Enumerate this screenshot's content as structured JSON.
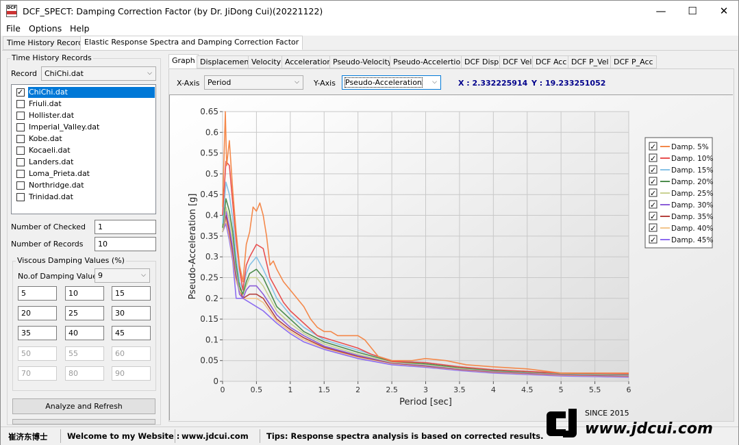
{
  "window": {
    "title": "DCF_SPECT: Damping Correction Factor (by Dr. JiDong Cui)(20221122)",
    "icon_text": "DCF",
    "minimize_icon": "minimize-icon",
    "maximize_icon": "maximize-icon",
    "close_icon": "close-icon"
  },
  "menu": [
    "File",
    "Options",
    "Help"
  ],
  "outer_tabs": [
    "Time History Records",
    "Elastic Response Spectra and Damping Correction Factor"
  ],
  "left": {
    "group_title": "Time History Records",
    "record_label": "Record",
    "record_value": "ChiChi.dat",
    "records": [
      {
        "name": "ChiChi.dat",
        "checked": true,
        "selected": true
      },
      {
        "name": "Friuli.dat",
        "checked": false
      },
      {
        "name": "Hollister.dat",
        "checked": false
      },
      {
        "name": "Imperial_Valley.dat",
        "checked": false
      },
      {
        "name": "Kobe.dat",
        "checked": false
      },
      {
        "name": "Kocaeli.dat",
        "checked": false
      },
      {
        "name": "Landers.dat",
        "checked": false
      },
      {
        "name": "Loma_Prieta.dat",
        "checked": false
      },
      {
        "name": "Northridge.dat",
        "checked": false
      },
      {
        "name": "Trinidad.dat",
        "checked": false
      }
    ],
    "checked_label": "Number of Checked",
    "checked_value": "1",
    "records_label": "Number of Records",
    "records_value": "10",
    "damping_group": "Viscous Damping Values (%)",
    "num_damping_label": "No.of Damping Values",
    "num_damping_value": "9",
    "damping_values": [
      "5",
      "10",
      "15",
      "20",
      "25",
      "30",
      "35",
      "40",
      "45",
      "50",
      "55",
      "60",
      "70",
      "80",
      "90"
    ],
    "analyze_button": "Analyze and Refresh"
  },
  "inner_tabs": [
    "Graph",
    "Displacement",
    "Velocity",
    "Acceleration",
    "Pseudo-Velocity",
    "Pseudo-Accelertion",
    "DCF Disp",
    "DCF Vel",
    "DCF Acc",
    "DCF P_Vel",
    "DCF P_Acc"
  ],
  "axis_select": {
    "x_label": "X-Axis",
    "x_value": "Period",
    "y_label": "Y-Axis",
    "y_value": "Pseudo-Acceleration"
  },
  "cursor": {
    "x_text": "X : 2.332225914",
    "y_text": "Y : 19.233251052"
  },
  "colors": {
    "damp5": "#f4884a",
    "damp10": "#e84f4f",
    "damp15": "#86c2e6",
    "damp20": "#4e8d4e",
    "damp25": "#c9d191",
    "damp30": "#8b5dd8",
    "damp35": "#b5413d",
    "damp40": "#f2c58c",
    "damp45": "#8c6cf0"
  },
  "chart_data": {
    "type": "line",
    "xlabel": "Period [sec]",
    "ylabel": "Pseudo-Acceleration [g]",
    "xlim": [
      0,
      6
    ],
    "ylim": [
      0,
      0.65
    ],
    "xticks": [
      "0",
      "0.5",
      "1",
      "1.5",
      "2",
      "2.5",
      "3",
      "3.5",
      "4",
      "4.5",
      "5",
      "5.5",
      "6"
    ],
    "yticks": [
      "0",
      "0.05",
      "0.1",
      "0.15",
      "0.2",
      "0.25",
      "0.3",
      "0.35",
      "0.4",
      "0.45",
      "0.5",
      "0.55",
      "0.6",
      "0.65"
    ],
    "grid": true,
    "legend_position": "right",
    "series": [
      {
        "name": "Damp. 5%",
        "color": "#f4884a",
        "x": [
          0,
          0.04,
          0.06,
          0.1,
          0.15,
          0.2,
          0.25,
          0.3,
          0.35,
          0.4,
          0.45,
          0.5,
          0.55,
          0.6,
          0.65,
          0.7,
          0.75,
          0.8,
          0.9,
          1.0,
          1.1,
          1.2,
          1.3,
          1.4,
          1.5,
          1.6,
          1.7,
          1.8,
          1.9,
          2.0,
          2.1,
          2.2,
          2.3,
          2.5,
          2.8,
          3.0,
          3.3,
          3.6,
          4.0,
          4.5,
          5.0,
          5.5,
          6.0
        ],
        "y": [
          0.42,
          0.65,
          0.52,
          0.58,
          0.46,
          0.36,
          0.28,
          0.24,
          0.33,
          0.36,
          0.42,
          0.41,
          0.43,
          0.4,
          0.35,
          0.28,
          0.29,
          0.27,
          0.24,
          0.22,
          0.2,
          0.18,
          0.15,
          0.13,
          0.12,
          0.12,
          0.11,
          0.11,
          0.11,
          0.11,
          0.1,
          0.08,
          0.06,
          0.05,
          0.05,
          0.055,
          0.05,
          0.04,
          0.035,
          0.03,
          0.02,
          0.02,
          0.02
        ]
      },
      {
        "name": "Damp. 10%",
        "color": "#e84f4f",
        "x": [
          0,
          0.05,
          0.1,
          0.15,
          0.2,
          0.25,
          0.3,
          0.35,
          0.4,
          0.5,
          0.6,
          0.7,
          0.8,
          0.9,
          1.0,
          1.2,
          1.4,
          1.6,
          1.8,
          2.0,
          2.2,
          2.3,
          2.5,
          3.0,
          3.5,
          4.0,
          5.0,
          6.0
        ],
        "y": [
          0.4,
          0.53,
          0.52,
          0.43,
          0.34,
          0.27,
          0.22,
          0.28,
          0.3,
          0.33,
          0.32,
          0.25,
          0.22,
          0.19,
          0.17,
          0.14,
          0.11,
          0.1,
          0.09,
          0.08,
          0.065,
          0.06,
          0.048,
          0.045,
          0.035,
          0.028,
          0.02,
          0.018
        ]
      },
      {
        "name": "Damp. 15%",
        "color": "#86c2e6",
        "x": [
          0,
          0.05,
          0.1,
          0.15,
          0.2,
          0.25,
          0.3,
          0.35,
          0.4,
          0.5,
          0.6,
          0.8,
          1.0,
          1.2,
          1.5,
          2.0,
          2.5,
          3.0,
          3.5,
          4.0,
          5.0,
          6.0
        ],
        "y": [
          0.38,
          0.48,
          0.45,
          0.39,
          0.3,
          0.24,
          0.22,
          0.26,
          0.28,
          0.3,
          0.27,
          0.2,
          0.16,
          0.13,
          0.1,
          0.075,
          0.05,
          0.045,
          0.035,
          0.028,
          0.02,
          0.017
        ]
      },
      {
        "name": "Damp. 20%",
        "color": "#4e8d4e",
        "x": [
          0,
          0.05,
          0.1,
          0.15,
          0.2,
          0.25,
          0.3,
          0.35,
          0.4,
          0.5,
          0.6,
          0.8,
          1.0,
          1.2,
          1.5,
          2.0,
          2.5,
          3.0,
          3.5,
          4.0,
          5.0,
          6.0
        ],
        "y": [
          0.37,
          0.44,
          0.41,
          0.36,
          0.28,
          0.23,
          0.21,
          0.24,
          0.26,
          0.27,
          0.25,
          0.18,
          0.15,
          0.12,
          0.095,
          0.07,
          0.048,
          0.042,
          0.033,
          0.026,
          0.019,
          0.016
        ]
      },
      {
        "name": "Damp. 25%",
        "color": "#c9d191",
        "x": [
          0,
          0.05,
          0.1,
          0.15,
          0.2,
          0.25,
          0.3,
          0.35,
          0.4,
          0.5,
          0.6,
          0.8,
          1.0,
          1.2,
          1.5,
          2.0,
          2.5,
          3.0,
          3.5,
          4.0,
          5.0,
          6.0
        ],
        "y": [
          0.36,
          0.42,
          0.39,
          0.34,
          0.27,
          0.22,
          0.21,
          0.23,
          0.25,
          0.25,
          0.23,
          0.17,
          0.14,
          0.115,
          0.09,
          0.065,
          0.046,
          0.04,
          0.031,
          0.025,
          0.018,
          0.015
        ]
      },
      {
        "name": "Damp. 30%",
        "color": "#8b5dd8",
        "x": [
          0,
          0.05,
          0.1,
          0.15,
          0.2,
          0.25,
          0.3,
          0.35,
          0.4,
          0.5,
          0.6,
          0.8,
          1.0,
          1.2,
          1.5,
          2.0,
          2.5,
          3.0,
          3.5,
          4.0,
          5.0,
          6.0
        ],
        "y": [
          0.36,
          0.41,
          0.37,
          0.32,
          0.26,
          0.21,
          0.2,
          0.22,
          0.23,
          0.23,
          0.21,
          0.16,
          0.13,
          0.11,
          0.085,
          0.062,
          0.045,
          0.038,
          0.03,
          0.024,
          0.017,
          0.014
        ]
      },
      {
        "name": "Damp. 35%",
        "color": "#b5413d",
        "x": [
          0,
          0.05,
          0.1,
          0.15,
          0.2,
          0.3,
          0.4,
          0.5,
          0.6,
          0.8,
          1.0,
          1.2,
          1.5,
          2.0,
          2.5,
          3.0,
          3.5,
          4.0,
          5.0,
          6.0
        ],
        "y": [
          0.36,
          0.4,
          0.36,
          0.31,
          0.25,
          0.2,
          0.21,
          0.21,
          0.2,
          0.15,
          0.125,
          0.105,
          0.082,
          0.06,
          0.044,
          0.037,
          0.029,
          0.023,
          0.016,
          0.013
        ]
      },
      {
        "name": "Damp. 40%",
        "color": "#f2c58c",
        "x": [
          0,
          0.05,
          0.1,
          0.15,
          0.2,
          0.3,
          0.4,
          0.5,
          0.6,
          0.8,
          1.0,
          1.2,
          1.5,
          2.0,
          2.5,
          3.0,
          3.5,
          4.0,
          5.0,
          6.0
        ],
        "y": [
          0.36,
          0.39,
          0.35,
          0.3,
          0.24,
          0.2,
          0.2,
          0.2,
          0.19,
          0.145,
          0.12,
          0.1,
          0.08,
          0.058,
          0.043,
          0.036,
          0.028,
          0.022,
          0.015,
          0.012
        ]
      },
      {
        "name": "Damp. 45%",
        "color": "#8c6cf0",
        "x": [
          0,
          0.05,
          0.1,
          0.15,
          0.2,
          0.3,
          0.4,
          0.5,
          0.6,
          0.8,
          1.0,
          1.2,
          1.5,
          2.0,
          2.5,
          3.0,
          3.5,
          4.0,
          5.0,
          6.0
        ],
        "y": [
          0.36,
          0.38,
          0.34,
          0.29,
          0.2,
          0.2,
          0.19,
          0.18,
          0.17,
          0.14,
          0.115,
          0.095,
          0.077,
          0.055,
          0.04,
          0.034,
          0.026,
          0.02,
          0.013,
          0.01
        ]
      }
    ]
  },
  "status": {
    "author": "崔济东博士",
    "welcome": "Welcome to my Website :",
    "website": "www.jdcui.com",
    "tips": "Tips: Response spectra analysis is based on corrected results."
  },
  "logo": {
    "since": "SINCE 2015",
    "url": "www.jdcui.com"
  }
}
